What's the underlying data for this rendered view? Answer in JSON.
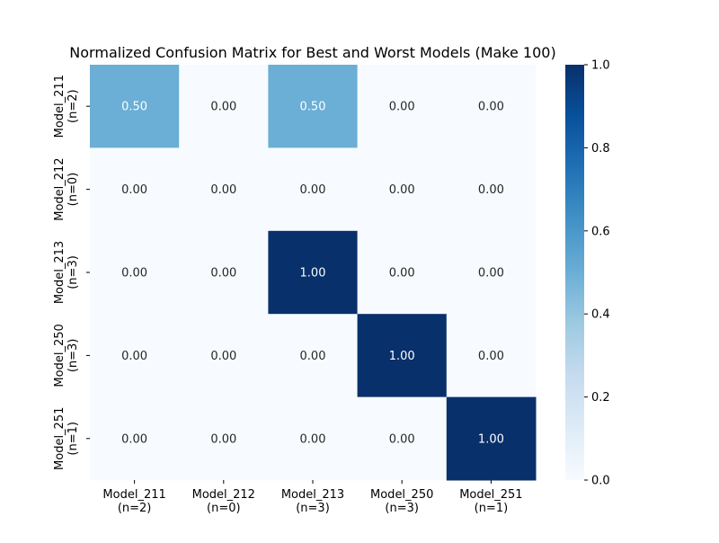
{
  "chart_data": {
    "type": "heatmap",
    "title": "Normalized Confusion Matrix for Best and Worst Models (Make 100)",
    "row_labels": [
      [
        "Model_211",
        "(n=2)"
      ],
      [
        "Model_212",
        "(n=0)"
      ],
      [
        "Model_213",
        "(n=3)"
      ],
      [
        "Model_250",
        "(n=3)"
      ],
      [
        "Model_251",
        "(n=1)"
      ]
    ],
    "col_labels": [
      [
        "Model_211",
        "(n=2)"
      ],
      [
        "Model_212",
        "(n=0)"
      ],
      [
        "Model_213",
        "(n=3)"
      ],
      [
        "Model_250",
        "(n=3)"
      ],
      [
        "Model_251",
        "(n=1)"
      ]
    ],
    "values": [
      [
        0.5,
        0.0,
        0.5,
        0.0,
        0.0
      ],
      [
        0.0,
        0.0,
        0.0,
        0.0,
        0.0
      ],
      [
        0.0,
        0.0,
        1.0,
        0.0,
        0.0
      ],
      [
        0.0,
        0.0,
        0.0,
        1.0,
        0.0
      ],
      [
        0.0,
        0.0,
        0.0,
        0.0,
        1.0
      ]
    ],
    "value_format": "0.00",
    "colormap": "Blues",
    "colormap_stops": [
      "#f7fbff",
      "#deebf7",
      "#c6dbef",
      "#9ecae1",
      "#6baed6",
      "#4292c6",
      "#2171b5",
      "#08519c",
      "#08306b"
    ],
    "colorbar": {
      "range": [
        0.0,
        1.0
      ],
      "ticks": [
        "0.0",
        "0.2",
        "0.4",
        "0.6",
        "0.8",
        "1.0"
      ]
    },
    "xlabel": "",
    "ylabel": "",
    "grid": false
  }
}
